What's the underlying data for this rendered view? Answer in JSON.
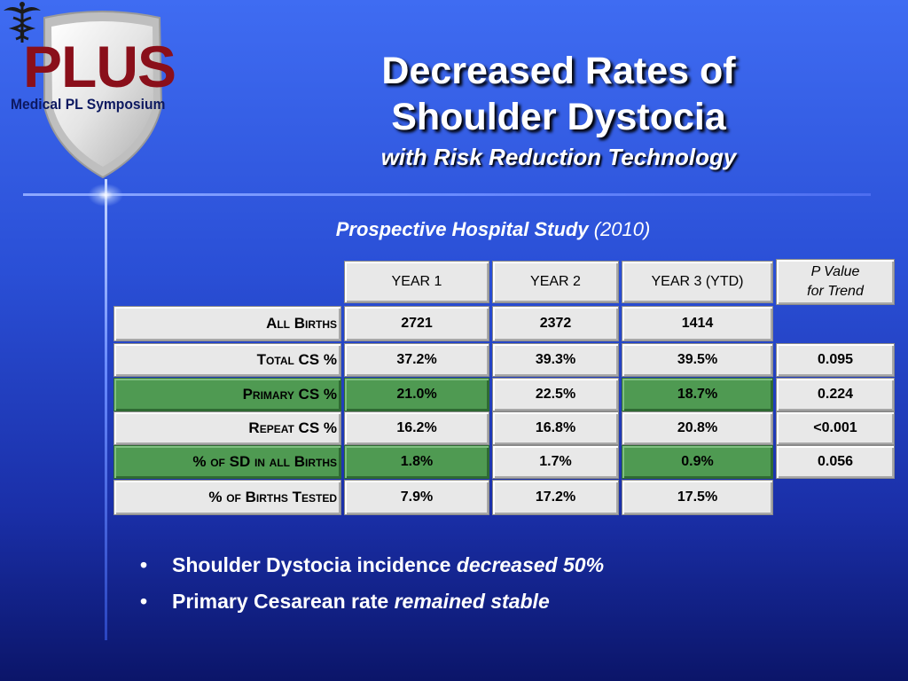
{
  "logo": {
    "plus": "PLUS",
    "subtitle": "Medical PL Symposium",
    "icon": "caduceus-icon",
    "colors": {
      "shield": "#e6e6e6",
      "plus": "#8a0f1a",
      "sub": "#0d1960"
    }
  },
  "title": {
    "line1": "Decreased Rates of",
    "line2": "Shoulder Dystocia"
  },
  "subtitle": "with Risk Reduction Technology",
  "study": {
    "name": "Prospective Hospital Study",
    "year": "(2010)"
  },
  "table": {
    "headers": [
      "YEAR 1",
      "YEAR 2",
      "YEAR 3 (YTD)"
    ],
    "pvalue_header": {
      "line1": "P Value",
      "line2": "for Trend"
    },
    "rows": [
      {
        "label": "All Births",
        "values": [
          "2721",
          "2372",
          "1414"
        ],
        "p": ""
      },
      {
        "label": "Total CS %",
        "values": [
          "37.2%",
          "39.3%",
          "39.5%"
        ],
        "p": "0.095"
      },
      {
        "label": "Primary CS %",
        "values": [
          "21.0%",
          "22.5%",
          "18.7%"
        ],
        "p": "0.224"
      },
      {
        "label": "Repeat CS %",
        "values": [
          "16.2%",
          "16.8%",
          "20.8%"
        ],
        "p": "<0.001"
      },
      {
        "label": "% of SD in all Births",
        "values": [
          "1.8%",
          "1.7%",
          "0.9%"
        ],
        "p": "0.056"
      },
      {
        "label": "% of Births Tested",
        "values": [
          "7.9%",
          "17.2%",
          "17.5%"
        ],
        "p": ""
      }
    ],
    "colors": {
      "cell": "#e8e8e8",
      "highlight": "#4f9a52"
    }
  },
  "bullets": [
    {
      "dot": "•",
      "text": "Shoulder Dystocia incidence",
      "emph": "decreased 50%"
    },
    {
      "dot": "•",
      "text": "Primary Cesarean rate",
      "emph": "remained stable"
    }
  ]
}
